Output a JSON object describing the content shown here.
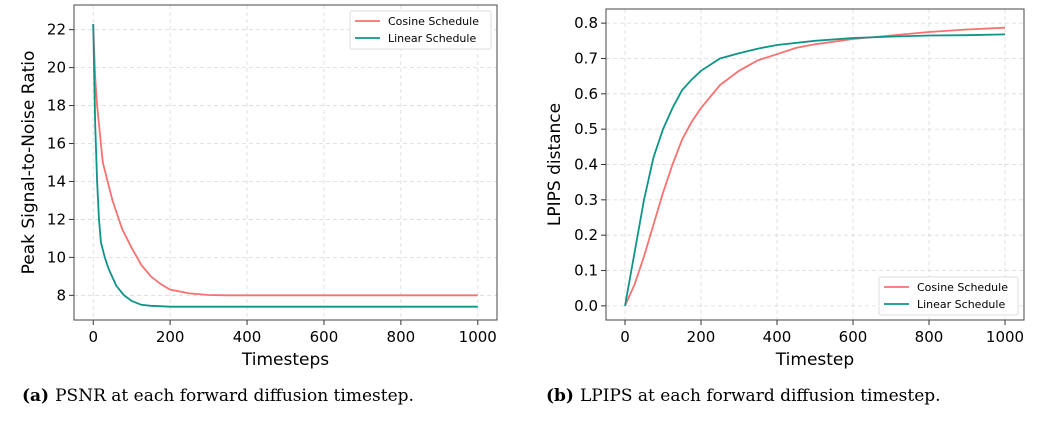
{
  "chart_data": [
    {
      "type": "line",
      "xlabel": "Timesteps",
      "ylabel": "Peak Signal-to-Noise Ratio",
      "xlim": [
        -50,
        1050
      ],
      "ylim": [
        6.7,
        23.3
      ],
      "xticks": [
        0,
        200,
        400,
        600,
        800,
        1000
      ],
      "yticks": [
        8,
        10,
        12,
        14,
        16,
        18,
        20,
        22
      ],
      "grid": true,
      "legend": "top-right",
      "caption_label": "(a)",
      "caption": "PSNR at each forward diffusion timestep.",
      "series": [
        {
          "name": "Cosine Schedule",
          "color": "#f87171",
          "x": [
            0,
            5,
            10,
            20,
            25,
            40,
            50,
            75,
            100,
            125,
            150,
            175,
            200,
            225,
            250,
            300,
            350,
            400,
            500,
            600,
            700,
            800,
            900,
            1000
          ],
          "y": [
            22.3,
            19.5,
            18,
            16,
            15,
            13.8,
            13,
            11.5,
            10.5,
            9.6,
            9.0,
            8.6,
            8.3,
            8.2,
            8.1,
            8.02,
            8.0,
            8.0,
            8.0,
            8.0,
            8.0,
            8.0,
            8.0,
            8.0
          ]
        },
        {
          "name": "Linear Schedule",
          "color": "#0f9488",
          "x": [
            0,
            5,
            10,
            15,
            20,
            30,
            40,
            60,
            80,
            100,
            125,
            150,
            200,
            300,
            400,
            500,
            600,
            700,
            800,
            900,
            1000
          ],
          "y": [
            22.3,
            17,
            14,
            12,
            10.8,
            10.0,
            9.4,
            8.5,
            8.0,
            7.7,
            7.5,
            7.45,
            7.4,
            7.4,
            7.4,
            7.4,
            7.4,
            7.4,
            7.4,
            7.4,
            7.4
          ]
        }
      ]
    },
    {
      "type": "line",
      "xlabel": "Timestep",
      "ylabel": "LPIPS distance",
      "xlim": [
        -50,
        1050
      ],
      "ylim": [
        -0.04,
        0.84
      ],
      "xticks": [
        0,
        200,
        400,
        600,
        800,
        1000
      ],
      "yticks": [
        0.0,
        0.1,
        0.2,
        0.3,
        0.4,
        0.5,
        0.6,
        0.7,
        0.8
      ],
      "ytick_labels": [
        "0.0",
        "0.1",
        "0.2",
        "0.3",
        "0.4",
        "0.5",
        "0.6",
        "0.7",
        "0.8"
      ],
      "grid": true,
      "legend": "bottom-right",
      "caption_label": "(b)",
      "caption": "LPIPS at each forward diffusion timestep.",
      "series": [
        {
          "name": "Cosine Schedule",
          "color": "#f87171",
          "x": [
            0,
            25,
            50,
            75,
            100,
            125,
            150,
            175,
            200,
            250,
            300,
            350,
            400,
            450,
            500,
            600,
            700,
            800,
            900,
            1000
          ],
          "y": [
            0,
            0.06,
            0.14,
            0.23,
            0.32,
            0.4,
            0.47,
            0.52,
            0.56,
            0.625,
            0.665,
            0.695,
            0.712,
            0.73,
            0.74,
            0.755,
            0.765,
            0.775,
            0.782,
            0.787
          ]
        },
        {
          "name": "Linear Schedule",
          "color": "#0f9488",
          "x": [
            0,
            25,
            50,
            75,
            100,
            125,
            150,
            175,
            200,
            250,
            300,
            350,
            400,
            500,
            600,
            700,
            800,
            900,
            1000
          ],
          "y": [
            0,
            0.15,
            0.3,
            0.42,
            0.5,
            0.56,
            0.61,
            0.64,
            0.665,
            0.7,
            0.715,
            0.728,
            0.738,
            0.75,
            0.758,
            0.762,
            0.765,
            0.766,
            0.768
          ]
        }
      ]
    }
  ]
}
